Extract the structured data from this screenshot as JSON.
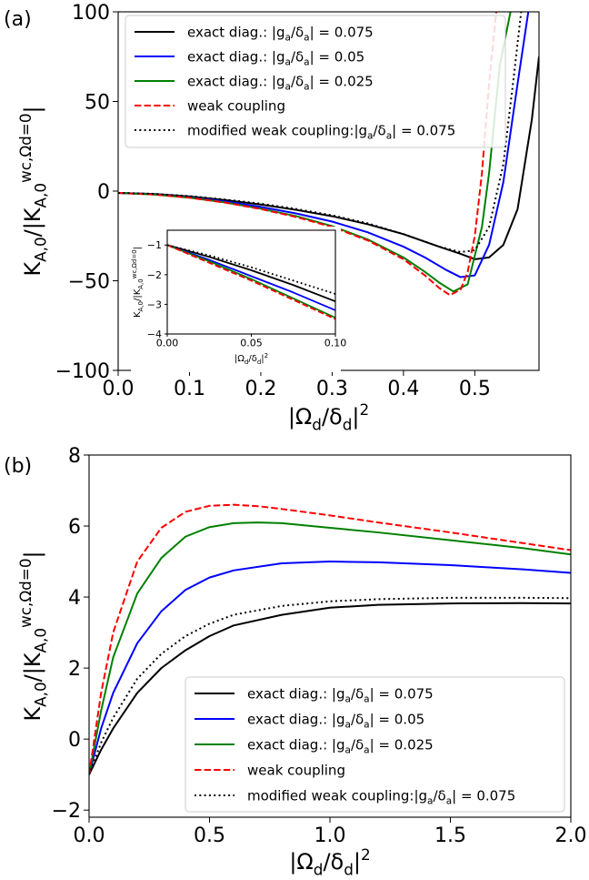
{
  "chart_data": [
    {
      "panel_label": "(a)",
      "type": "line",
      "xlabel": "|Ω_d/δ_d|²",
      "ylabel": "K_{A,0}/|K_{A,0}^{wc,Ω_d=0}|",
      "xlim": [
        0.0,
        0.59
      ],
      "ylim": [
        -100,
        100
      ],
      "xticks": [
        0.0,
        0.1,
        0.2,
        0.3,
        0.4,
        0.5
      ],
      "xtick_labels": [
        "0.0",
        "0.1",
        "0.2",
        "0.3",
        "0.4",
        "0.5"
      ],
      "yticks": [
        -100,
        -50,
        0,
        50,
        100
      ],
      "ytick_labels": [
        "−100",
        "−50",
        "0",
        "50",
        "100"
      ],
      "legend_placement": "top-left",
      "series": [
        {
          "name": "exact diag.: |g_a/δ_a| = 0.075",
          "color": "#000000",
          "style": "solid",
          "x": [
            0.0,
            0.05,
            0.1,
            0.15,
            0.2,
            0.25,
            0.3,
            0.35,
            0.4,
            0.45,
            0.48,
            0.5,
            0.52,
            0.54,
            0.56,
            0.58,
            0.59
          ],
          "y": [
            -1,
            -1.6,
            -3,
            -5,
            -7.5,
            -10.5,
            -14,
            -18.5,
            -24,
            -31,
            -35,
            -38,
            -37,
            -30,
            -10,
            40,
            75
          ]
        },
        {
          "name": "exact diag.: |g_a/δ_a| = 0.05",
          "color": "#0000ff",
          "style": "solid",
          "x": [
            0.0,
            0.05,
            0.1,
            0.15,
            0.2,
            0.25,
            0.3,
            0.35,
            0.4,
            0.43,
            0.46,
            0.48,
            0.5,
            0.52,
            0.54,
            0.56,
            0.575
          ],
          "y": [
            -1,
            -1.8,
            -3.4,
            -5.7,
            -8.8,
            -12.5,
            -17,
            -23,
            -31,
            -37,
            -44,
            -48,
            -47,
            -30,
            5,
            60,
            100
          ]
        },
        {
          "name": "exact diag.: |g_a/δ_a| = 0.025",
          "color": "#008000",
          "style": "solid",
          "x": [
            0.0,
            0.05,
            0.1,
            0.15,
            0.2,
            0.25,
            0.3,
            0.35,
            0.4,
            0.43,
            0.45,
            0.47,
            0.49,
            0.51,
            0.52,
            0.535,
            0.55
          ],
          "y": [
            -1,
            -1.9,
            -3.7,
            -6.3,
            -9.8,
            -14,
            -19.5,
            -27,
            -37,
            -45,
            -51,
            -56,
            -52,
            -20,
            10,
            70,
            100
          ]
        },
        {
          "name": "weak coupling",
          "color": "#ff0000",
          "style": "dashed",
          "x": [
            0.0,
            0.05,
            0.1,
            0.15,
            0.2,
            0.25,
            0.3,
            0.35,
            0.4,
            0.43,
            0.45,
            0.465,
            0.48,
            0.49,
            0.5,
            0.51,
            0.52,
            0.53
          ],
          "y": [
            -1,
            -1.9,
            -3.7,
            -6.4,
            -10,
            -14.5,
            -20,
            -27.5,
            -38,
            -47,
            -54,
            -58,
            -55,
            -45,
            -25,
            10,
            60,
            100
          ]
        },
        {
          "name": "modified weak coupling:|g_a/δ_a| = 0.075",
          "color": "#000000",
          "style": "dotted",
          "x": [
            0.0,
            0.05,
            0.1,
            0.15,
            0.2,
            0.25,
            0.3,
            0.35,
            0.4,
            0.45,
            0.48,
            0.5,
            0.52,
            0.54,
            0.555,
            0.565
          ],
          "y": [
            -1,
            -1.5,
            -2.8,
            -4.7,
            -7,
            -10,
            -13.5,
            -18,
            -24,
            -31,
            -34,
            -33,
            -20,
            15,
            65,
            100
          ]
        }
      ],
      "inset": {
        "xlabel": "|Ω_d/δ_d|²",
        "ylabel": "K_{A,0}/|K_{A,0}^{wc,Ω_d=0}|",
        "xlim": [
          0.0,
          0.1
        ],
        "ylim": [
          -4,
          -0.5
        ],
        "xticks": [
          0.0,
          0.05,
          0.1
        ],
        "xtick_labels": [
          "0.00",
          "0.05",
          "0.10"
        ],
        "yticks": [
          -4,
          -3,
          -2,
          -1
        ],
        "ytick_labels": [
          "−4",
          "−3",
          "−2",
          "−1"
        ],
        "series": [
          {
            "color": "#000000",
            "style": "solid",
            "x": [
              0,
              0.025,
              0.05,
              0.075,
              0.1
            ],
            "y": [
              -1,
              -1.4,
              -1.85,
              -2.35,
              -2.9
            ]
          },
          {
            "color": "#0000ff",
            "style": "solid",
            "x": [
              0,
              0.025,
              0.05,
              0.075,
              0.1
            ],
            "y": [
              -1,
              -1.5,
              -2.05,
              -2.6,
              -3.2
            ]
          },
          {
            "color": "#008000",
            "style": "solid",
            "x": [
              0,
              0.025,
              0.05,
              0.075,
              0.1
            ],
            "y": [
              -1,
              -1.55,
              -2.15,
              -2.8,
              -3.45
            ]
          },
          {
            "color": "#ff0000",
            "style": "dashed",
            "x": [
              0,
              0.025,
              0.05,
              0.075,
              0.1
            ],
            "y": [
              -1,
              -1.6,
              -2.2,
              -2.85,
              -3.5
            ]
          },
          {
            "color": "#000000",
            "style": "dotted",
            "x": [
              0,
              0.025,
              0.05,
              0.075,
              0.1
            ],
            "y": [
              -1,
              -1.35,
              -1.75,
              -2.2,
              -2.65
            ]
          }
        ]
      }
    },
    {
      "panel_label": "(b)",
      "type": "line",
      "xlabel": "|Ω_d/δ_d|²",
      "ylabel": "K_{A,0}/|K_{A,0}^{wc,Ω_d=0}|",
      "xlim": [
        0.0,
        2.0
      ],
      "ylim": [
        -2.2,
        8
      ],
      "xticks": [
        0.0,
        0.5,
        1.0,
        1.5,
        2.0
      ],
      "xtick_labels": [
        "0.0",
        "0.5",
        "1.0",
        "1.5",
        "2.0"
      ],
      "yticks": [
        -2,
        0,
        2,
        4,
        6,
        8
      ],
      "ytick_labels": [
        "−2",
        "0",
        "2",
        "4",
        "6",
        "8"
      ],
      "legend_placement": "bottom-right",
      "series": [
        {
          "name": "exact diag.: |g_a/δ_a| = 0.075",
          "color": "#000000",
          "style": "solid",
          "x": [
            0,
            0.05,
            0.1,
            0.2,
            0.3,
            0.4,
            0.5,
            0.6,
            0.8,
            1.0,
            1.2,
            1.5,
            1.8,
            2.0
          ],
          "y": [
            -1,
            -0.3,
            0.3,
            1.3,
            2.0,
            2.5,
            2.9,
            3.2,
            3.5,
            3.7,
            3.78,
            3.82,
            3.83,
            3.82
          ]
        },
        {
          "name": "exact diag.: |g_a/δ_a| = 0.05",
          "color": "#0000ff",
          "style": "solid",
          "x": [
            0,
            0.05,
            0.1,
            0.2,
            0.3,
            0.4,
            0.5,
            0.6,
            0.8,
            1.0,
            1.2,
            1.5,
            1.8,
            2.0
          ],
          "y": [
            -1,
            0.3,
            1.3,
            2.7,
            3.6,
            4.2,
            4.55,
            4.75,
            4.95,
            5.0,
            4.98,
            4.9,
            4.78,
            4.68
          ]
        },
        {
          "name": "exact diag.: |g_a/δ_a| = 0.025",
          "color": "#008000",
          "style": "solid",
          "x": [
            0,
            0.05,
            0.1,
            0.2,
            0.3,
            0.4,
            0.5,
            0.6,
            0.7,
            0.8,
            1.0,
            1.2,
            1.5,
            1.8,
            2.0
          ],
          "y": [
            -1,
            0.8,
            2.3,
            4.1,
            5.1,
            5.7,
            5.97,
            6.08,
            6.1,
            6.08,
            5.95,
            5.82,
            5.6,
            5.38,
            5.2
          ]
        },
        {
          "name": "weak coupling",
          "color": "#ff0000",
          "style": "dashed",
          "x": [
            0,
            0.05,
            0.1,
            0.2,
            0.3,
            0.4,
            0.5,
            0.6,
            0.7,
            0.8,
            1.0,
            1.2,
            1.5,
            1.8,
            2.0
          ],
          "y": [
            -1,
            1.3,
            3.0,
            5.0,
            5.95,
            6.4,
            6.57,
            6.6,
            6.56,
            6.48,
            6.3,
            6.1,
            5.82,
            5.52,
            5.32
          ]
        },
        {
          "name": "modified weak coupling:|g_a/δ_a| = 0.075",
          "color": "#000000",
          "style": "dotted",
          "x": [
            0,
            0.05,
            0.1,
            0.2,
            0.3,
            0.4,
            0.5,
            0.6,
            0.8,
            1.0,
            1.2,
            1.5,
            1.8,
            2.0
          ],
          "y": [
            -1,
            -0.1,
            0.6,
            1.7,
            2.4,
            2.9,
            3.25,
            3.5,
            3.75,
            3.88,
            3.94,
            3.98,
            3.98,
            3.97
          ]
        }
      ]
    }
  ]
}
